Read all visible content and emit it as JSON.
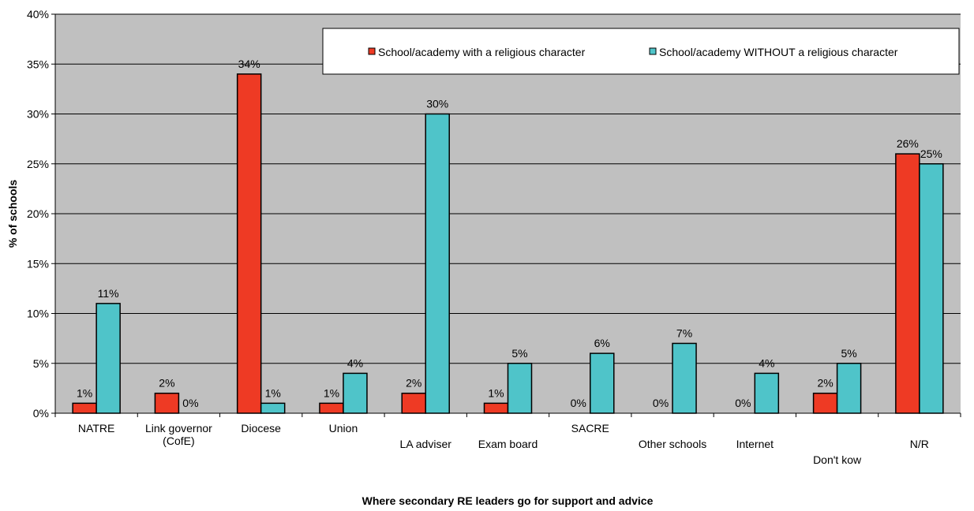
{
  "chart_data": {
    "type": "bar",
    "title": "",
    "xlabel": "Where secondary  RE leaders go for support and advice",
    "ylabel": "% of schools",
    "ylim": [
      0,
      40
    ],
    "yticks": [
      "0%",
      "5%",
      "10%",
      "15%",
      "20%",
      "25%",
      "30%",
      "35%",
      "40%"
    ],
    "grid": true,
    "legend_position": "top-right",
    "categories": [
      [
        "NATRE"
      ],
      [
        "Link governor",
        "(CofE)"
      ],
      [
        "Diocese"
      ],
      [
        "Union"
      ],
      [
        "LA adviser"
      ],
      [
        "Exam board"
      ],
      [
        "SACRE"
      ],
      [
        "Other schools"
      ],
      [
        "Internet"
      ],
      [
        "Don't kow"
      ],
      [
        "N/R"
      ]
    ],
    "category_label_row": [
      0,
      0,
      0,
      0,
      1,
      1,
      0,
      1,
      1,
      2,
      1
    ],
    "series": [
      {
        "name": "School/academy with a religious character",
        "color": "#ee3a24",
        "values": [
          1,
          2,
          34,
          1,
          2,
          1,
          0,
          0,
          0,
          2,
          26
        ],
        "labels": [
          "1%",
          "2%",
          "34%",
          "1%",
          "2%",
          "1%",
          "0%",
          "0%",
          "0%",
          "2%",
          "26%"
        ]
      },
      {
        "name": "School/academy WITHOUT a religious character",
        "color": "#4fc4c9",
        "values": [
          11,
          0,
          1,
          4,
          30,
          5,
          6,
          7,
          4,
          5,
          25
        ],
        "labels": [
          "11%",
          "0%",
          "1%",
          "4%",
          "30%",
          "5%",
          "6%",
          "7%",
          "4%",
          "5%",
          "25%"
        ]
      }
    ],
    "colors": {
      "plot_background": "#c0c0c0",
      "gridline": "#000000"
    }
  }
}
